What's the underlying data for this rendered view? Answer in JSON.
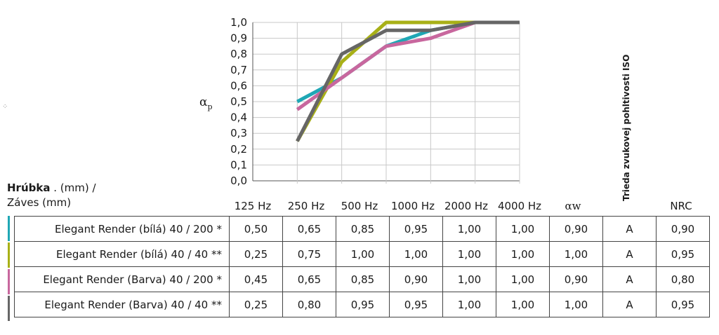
{
  "chart_data": {
    "type": "line",
    "x": [
      "125 Hz",
      "250 Hz",
      "500 Hz",
      "1000 Hz",
      "2000 Hz",
      "4000 Hz"
    ],
    "ylabel": "αp",
    "ylim": [
      0,
      1
    ],
    "yticks": [
      "0,0",
      "0,1",
      "0,2",
      "0,3",
      "0,4",
      "0,5",
      "0,6",
      "0,7",
      "0,8",
      "0,9",
      "1,0"
    ],
    "grid": true,
    "series": [
      {
        "color": "#1fa7b5",
        "values": [
          0.5,
          0.65,
          0.85,
          0.95,
          1.0,
          1.0
        ]
      },
      {
        "color": "#a8b017",
        "values": [
          0.25,
          0.75,
          1.0,
          1.0,
          1.0,
          1.0
        ]
      },
      {
        "color": "#c8679e",
        "values": [
          0.45,
          0.65,
          0.85,
          0.9,
          1.0,
          1.0
        ]
      },
      {
        "color": "#666666",
        "values": [
          0.25,
          0.8,
          0.95,
          0.95,
          1.0,
          1.0
        ]
      }
    ]
  },
  "header": {
    "label_bold": "Hrúbka",
    "label_rest": " . (mm) /",
    "label_line2": "Záves (mm)",
    "columns": [
      "125 Hz",
      "250 Hz",
      "500 Hz",
      "1000 Hz",
      "2000 Hz",
      "4000 Hz",
      "αw",
      "",
      "NRC"
    ],
    "iso_class_heading": "Trieda zvukovej pohltivosti ISO"
  },
  "rows": [
    {
      "name": "Elegant Render (bílá) 40 / 200 *",
      "color": "#1fa7b5",
      "cells": [
        "0,50",
        "0,65",
        "0,85",
        "0,95",
        "1,00",
        "1,00",
        "0,90",
        "A",
        "0,90"
      ]
    },
    {
      "name": "Elegant Render (bílá) 40 / 40 **",
      "color": "#a8b017",
      "cells": [
        "0,25",
        "0,75",
        "1,00",
        "1,00",
        "1,00",
        "1,00",
        "1,00",
        "A",
        "0,95"
      ]
    },
    {
      "name": "Elegant Render (Barva) 40 / 200 *",
      "color": "#c8679e",
      "cells": [
        "0,45",
        "0,65",
        "0,85",
        "0,90",
        "1,00",
        "1,00",
        "0,90",
        "A",
        "0,80"
      ]
    },
    {
      "name": "Elegant Render (Barva) 40 / 40 **",
      "color": "#666666",
      "cells": [
        "0,25",
        "0,80",
        "0,95",
        "0,95",
        "1,00",
        "1,00",
        "1,00",
        "A",
        "0,95"
      ]
    }
  ]
}
